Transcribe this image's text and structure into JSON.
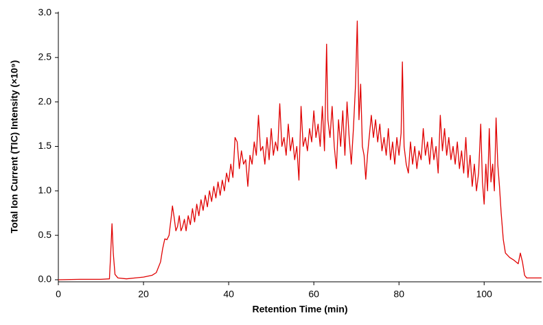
{
  "chart_data": {
    "type": "line",
    "xlabel": "Retention Time (min)",
    "ylabel": "Total Ion Current (TIC) Intensity (×10⁹)",
    "color": "#e00000",
    "xlim": [
      0,
      113.5
    ],
    "xticks": [
      0,
      20,
      40,
      60,
      80,
      100
    ],
    "ylim": [
      0,
      3.0
    ],
    "yticks": [
      {
        "value": 0,
        "label": "0.0"
      },
      0.5,
      {
        "value": 1,
        "label": "1.0"
      },
      1.5,
      {
        "value": 2,
        "label": "2.0"
      },
      2.5,
      {
        "value": 3,
        "label": "3.0"
      }
    ],
    "x": [
      0,
      5,
      10,
      12,
      12.3,
      12.6,
      12.9,
      13.3,
      14,
      16,
      18,
      20,
      22,
      23,
      24,
      24.5,
      25,
      25.5,
      26,
      26.5,
      26.8,
      27.2,
      27.6,
      28,
      28.4,
      28.8,
      29.2,
      29.6,
      30,
      30.5,
      31,
      31.5,
      32,
      32.5,
      33,
      33.5,
      34,
      34.5,
      35,
      35.5,
      36,
      36.5,
      37,
      37.5,
      38,
      38.5,
      39,
      39.5,
      40,
      40.5,
      41,
      41.5,
      42,
      42.5,
      43,
      43.5,
      44,
      44.5,
      45,
      45.5,
      46,
      46.5,
      47,
      47.5,
      48,
      48.5,
      49,
      49.5,
      50,
      50.5,
      51,
      51.5,
      52,
      52.5,
      53,
      53.5,
      54,
      54.5,
      55,
      55.5,
      56,
      56.5,
      57,
      57.5,
      58,
      58.5,
      59,
      59.5,
      60,
      60.5,
      61,
      61.5,
      62,
      62.5,
      63,
      63.3,
      63.8,
      64.3,
      64.8,
      65.3,
      65.8,
      66.3,
      66.8,
      67.3,
      67.8,
      68.3,
      68.8,
      69.3,
      69.8,
      70.2,
      70.6,
      71,
      71.4,
      71.8,
      72.2,
      72.6,
      73,
      73.5,
      74,
      74.5,
      75,
      75.5,
      76,
      76.5,
      77,
      77.5,
      78,
      78.5,
      79,
      79.5,
      80,
      80.5,
      80.8,
      81.2,
      81.7,
      82.2,
      82.7,
      83.2,
      83.7,
      84.2,
      84.7,
      85.2,
      85.7,
      86.2,
      86.7,
      87.2,
      87.7,
      88.2,
      88.7,
      89.2,
      89.7,
      90.2,
      90.7,
      91.2,
      91.7,
      92.2,
      92.7,
      93.2,
      93.7,
      94.2,
      94.7,
      95.2,
      95.7,
      96.2,
      96.7,
      97.2,
      97.7,
      98.2,
      98.7,
      99.2,
      99.6,
      100,
      100.4,
      100.8,
      101.2,
      101.6,
      102,
      102.4,
      102.8,
      103.2,
      103.6,
      104,
      104.5,
      105,
      106,
      107,
      108,
      108.5,
      109,
      109.5,
      110,
      113.5
    ],
    "values": [
      0,
      0.005,
      0.005,
      0.01,
      0.3,
      0.63,
      0.3,
      0.06,
      0.02,
      0.01,
      0.02,
      0.03,
      0.05,
      0.08,
      0.2,
      0.35,
      0.46,
      0.45,
      0.5,
      0.7,
      0.83,
      0.7,
      0.55,
      0.6,
      0.72,
      0.55,
      0.6,
      0.68,
      0.55,
      0.72,
      0.62,
      0.8,
      0.65,
      0.85,
      0.72,
      0.9,
      0.78,
      0.95,
      0.82,
      1.0,
      0.88,
      1.05,
      0.92,
      1.1,
      0.95,
      1.12,
      1.0,
      1.2,
      1.1,
      1.3,
      1.15,
      1.6,
      1.55,
      1.25,
      1.45,
      1.3,
      1.35,
      1.05,
      1.4,
      1.3,
      1.55,
      1.4,
      1.85,
      1.45,
      1.5,
      1.3,
      1.6,
      1.35,
      1.7,
      1.4,
      1.55,
      1.45,
      1.98,
      1.5,
      1.6,
      1.4,
      1.75,
      1.45,
      1.6,
      1.35,
      1.5,
      1.12,
      1.95,
      1.5,
      1.6,
      1.45,
      1.7,
      1.55,
      1.9,
      1.6,
      1.75,
      1.5,
      1.95,
      1.45,
      2.65,
      1.8,
      1.6,
      1.95,
      1.5,
      1.25,
      1.8,
      1.5,
      1.9,
      1.4,
      2.0,
      1.6,
      1.3,
      1.7,
      2.2,
      2.91,
      1.8,
      2.2,
      1.5,
      1.4,
      1.13,
      1.4,
      1.6,
      1.85,
      1.6,
      1.8,
      1.55,
      1.75,
      1.45,
      1.6,
      1.4,
      1.7,
      1.35,
      1.55,
      1.3,
      1.6,
      1.4,
      1.65,
      2.45,
      1.5,
      1.3,
      1.2,
      1.55,
      1.3,
      1.5,
      1.25,
      1.45,
      1.35,
      1.7,
      1.4,
      1.55,
      1.3,
      1.6,
      1.35,
      1.5,
      1.2,
      1.85,
      1.45,
      1.7,
      1.4,
      1.6,
      1.35,
      1.5,
      1.3,
      1.55,
      1.25,
      1.45,
      1.2,
      1.6,
      1.15,
      1.4,
      1.05,
      1.3,
      1.0,
      1.2,
      1.75,
      1.1,
      0.85,
      1.3,
      1.0,
      1.7,
      1.1,
      1.3,
      1.0,
      1.82,
      1.3,
      1.05,
      0.75,
      0.45,
      0.3,
      0.25,
      0.22,
      0.18,
      0.3,
      0.2,
      0.05,
      0.02,
      0.02
    ]
  }
}
